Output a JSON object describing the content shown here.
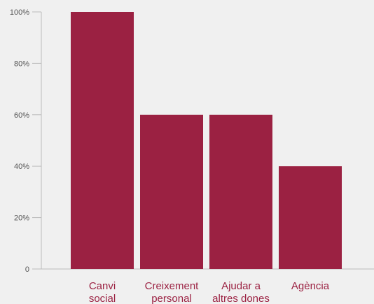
{
  "chart_data": {
    "type": "bar",
    "categories": [
      [
        "Canvi",
        "social"
      ],
      [
        "Creixement",
        "personal"
      ],
      [
        "Ajudar a",
        "altres dones"
      ],
      [
        "Agència"
      ]
    ],
    "values": [
      100,
      60,
      60,
      40
    ],
    "y_ticks": [
      0,
      20,
      40,
      60,
      80,
      100
    ],
    "y_tick_labels": [
      "0",
      "20%",
      "40%",
      "60%",
      "80%",
      "100%"
    ],
    "ylim": [
      0,
      100
    ],
    "grid": false,
    "legend": "none",
    "colors": {
      "bar": "#9b2142",
      "category_label": "#9b2142",
      "axis": "#bbbbbb",
      "tick_label": "#555555"
    }
  }
}
